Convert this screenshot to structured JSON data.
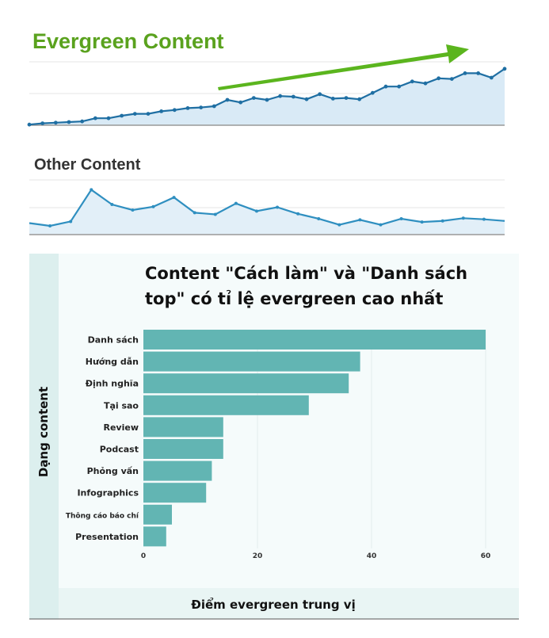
{
  "chart_data": [
    {
      "type": "area",
      "title": "Evergreen Content",
      "title_color": "#5aa21e",
      "series": [
        {
          "values": [
            1,
            3,
            4,
            5,
            6,
            11,
            11,
            15,
            18,
            18,
            22,
            24,
            27,
            28,
            30,
            40,
            36,
            43,
            40,
            46,
            45,
            41,
            49,
            42,
            43,
            41,
            51,
            61,
            61,
            69,
            66,
            74,
            73,
            82,
            82,
            75,
            89
          ]
        }
      ],
      "ylim": [
        0,
        100
      ],
      "grid": true,
      "line_color": "#1f6fa3",
      "fill_color": "#d9eaf6",
      "annotation": "upward-green-arrow"
    },
    {
      "type": "area",
      "title": "Other Content",
      "series": [
        {
          "values": [
            21,
            16,
            24,
            82,
            55,
            45,
            51,
            68,
            40,
            37,
            57,
            43,
            50,
            38,
            29,
            18,
            27,
            18,
            29,
            23,
            25,
            30,
            28,
            25
          ]
        }
      ],
      "ylim": [
        0,
        100
      ],
      "grid": true,
      "line_color": "#2f8fc0",
      "fill_color": "#e2eff8"
    },
    {
      "type": "bar",
      "orientation": "horizontal",
      "title_lines": [
        "Content \"Cách làm\" và \"Danh sách",
        "top\" có tỉ lệ evergreen cao nhất"
      ],
      "categories": [
        "Danh sách",
        "Hướng dẫn",
        "Định nghĩa",
        "Tại sao",
        "Review",
        "Podcast",
        "Phỏng vấn",
        "Infographics",
        "Thông cáo báo chí",
        "Presentation"
      ],
      "values": [
        60,
        38,
        36,
        29,
        14,
        14,
        12,
        11,
        5,
        4
      ],
      "xlabel": "Điểm evergreen trung vị",
      "ylabel": "Dạng content",
      "xlim": [
        0,
        60
      ],
      "xticks": [
        "0",
        "20",
        "40",
        "60"
      ],
      "grid": true,
      "bar_color": "#62b5b3"
    }
  ]
}
